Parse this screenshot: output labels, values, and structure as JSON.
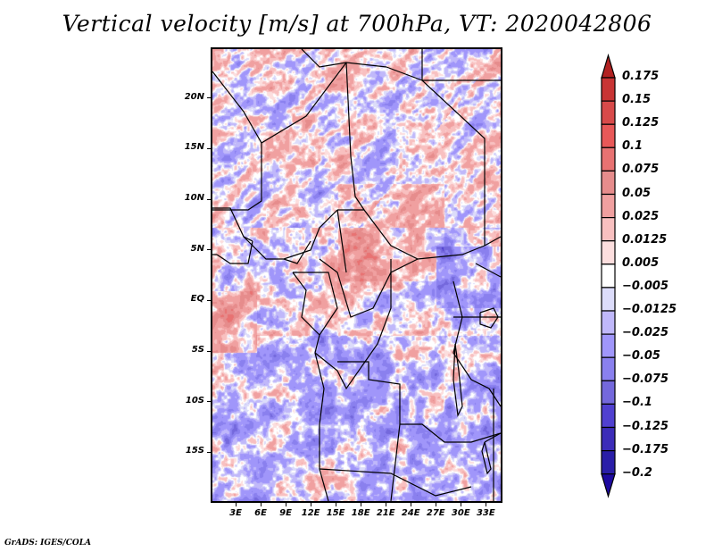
{
  "title": "Vertical velocity [m/s] at 700hPa, VT: 2020042806",
  "credit": "GrADS: IGES/COLA",
  "map": {
    "variable": "Vertical velocity",
    "units": "m/s",
    "level": "700hPa",
    "valid_time": "2020042806",
    "lon_range": [
      0,
      35
    ],
    "lat_range": [
      -20,
      25
    ],
    "y_ticks": [
      {
        "label": "20N",
        "lat": 20
      },
      {
        "label": "15N",
        "lat": 15
      },
      {
        "label": "10N",
        "lat": 10
      },
      {
        "label": "5N",
        "lat": 5
      },
      {
        "label": "EQ",
        "lat": 0
      },
      {
        "label": "5S",
        "lat": -5
      },
      {
        "label": "10S",
        "lat": -10
      },
      {
        "label": "15S",
        "lat": -15
      }
    ],
    "x_ticks": [
      {
        "label": "3E",
        "lon": 3
      },
      {
        "label": "6E",
        "lon": 6
      },
      {
        "label": "9E",
        "lon": 9
      },
      {
        "label": "12E",
        "lon": 12
      },
      {
        "label": "15E",
        "lon": 15
      },
      {
        "label": "18E",
        "lon": 18
      },
      {
        "label": "21E",
        "lon": 21
      },
      {
        "label": "24E",
        "lon": 24
      },
      {
        "label": "27E",
        "lon": 27
      },
      {
        "label": "30E",
        "lon": 30
      },
      {
        "label": "33E",
        "lon": 33
      }
    ]
  },
  "colorbar": {
    "levels": [
      "0.175",
      "0.15",
      "0.125",
      "0.1",
      "0.075",
      "0.05",
      "0.025",
      "0.0125",
      "0.005",
      "-0.005",
      "-0.0125",
      "-0.025",
      "-0.05",
      "-0.075",
      "-0.1",
      "-0.125",
      "-0.175",
      "-0.2"
    ],
    "colors": [
      "#b22222",
      "#c83434",
      "#d84a4a",
      "#e85858",
      "#e87272",
      "#e68c8c",
      "#f0a0a0",
      "#f8c0c0",
      "#fcdede",
      "#ffffff",
      "#dcdcfa",
      "#c0b8fa",
      "#a096fa",
      "#8a80ee",
      "#7468dc",
      "#5040d0",
      "#3c2cb8",
      "#2a1ea8",
      "#1e0aa0"
    ]
  }
}
